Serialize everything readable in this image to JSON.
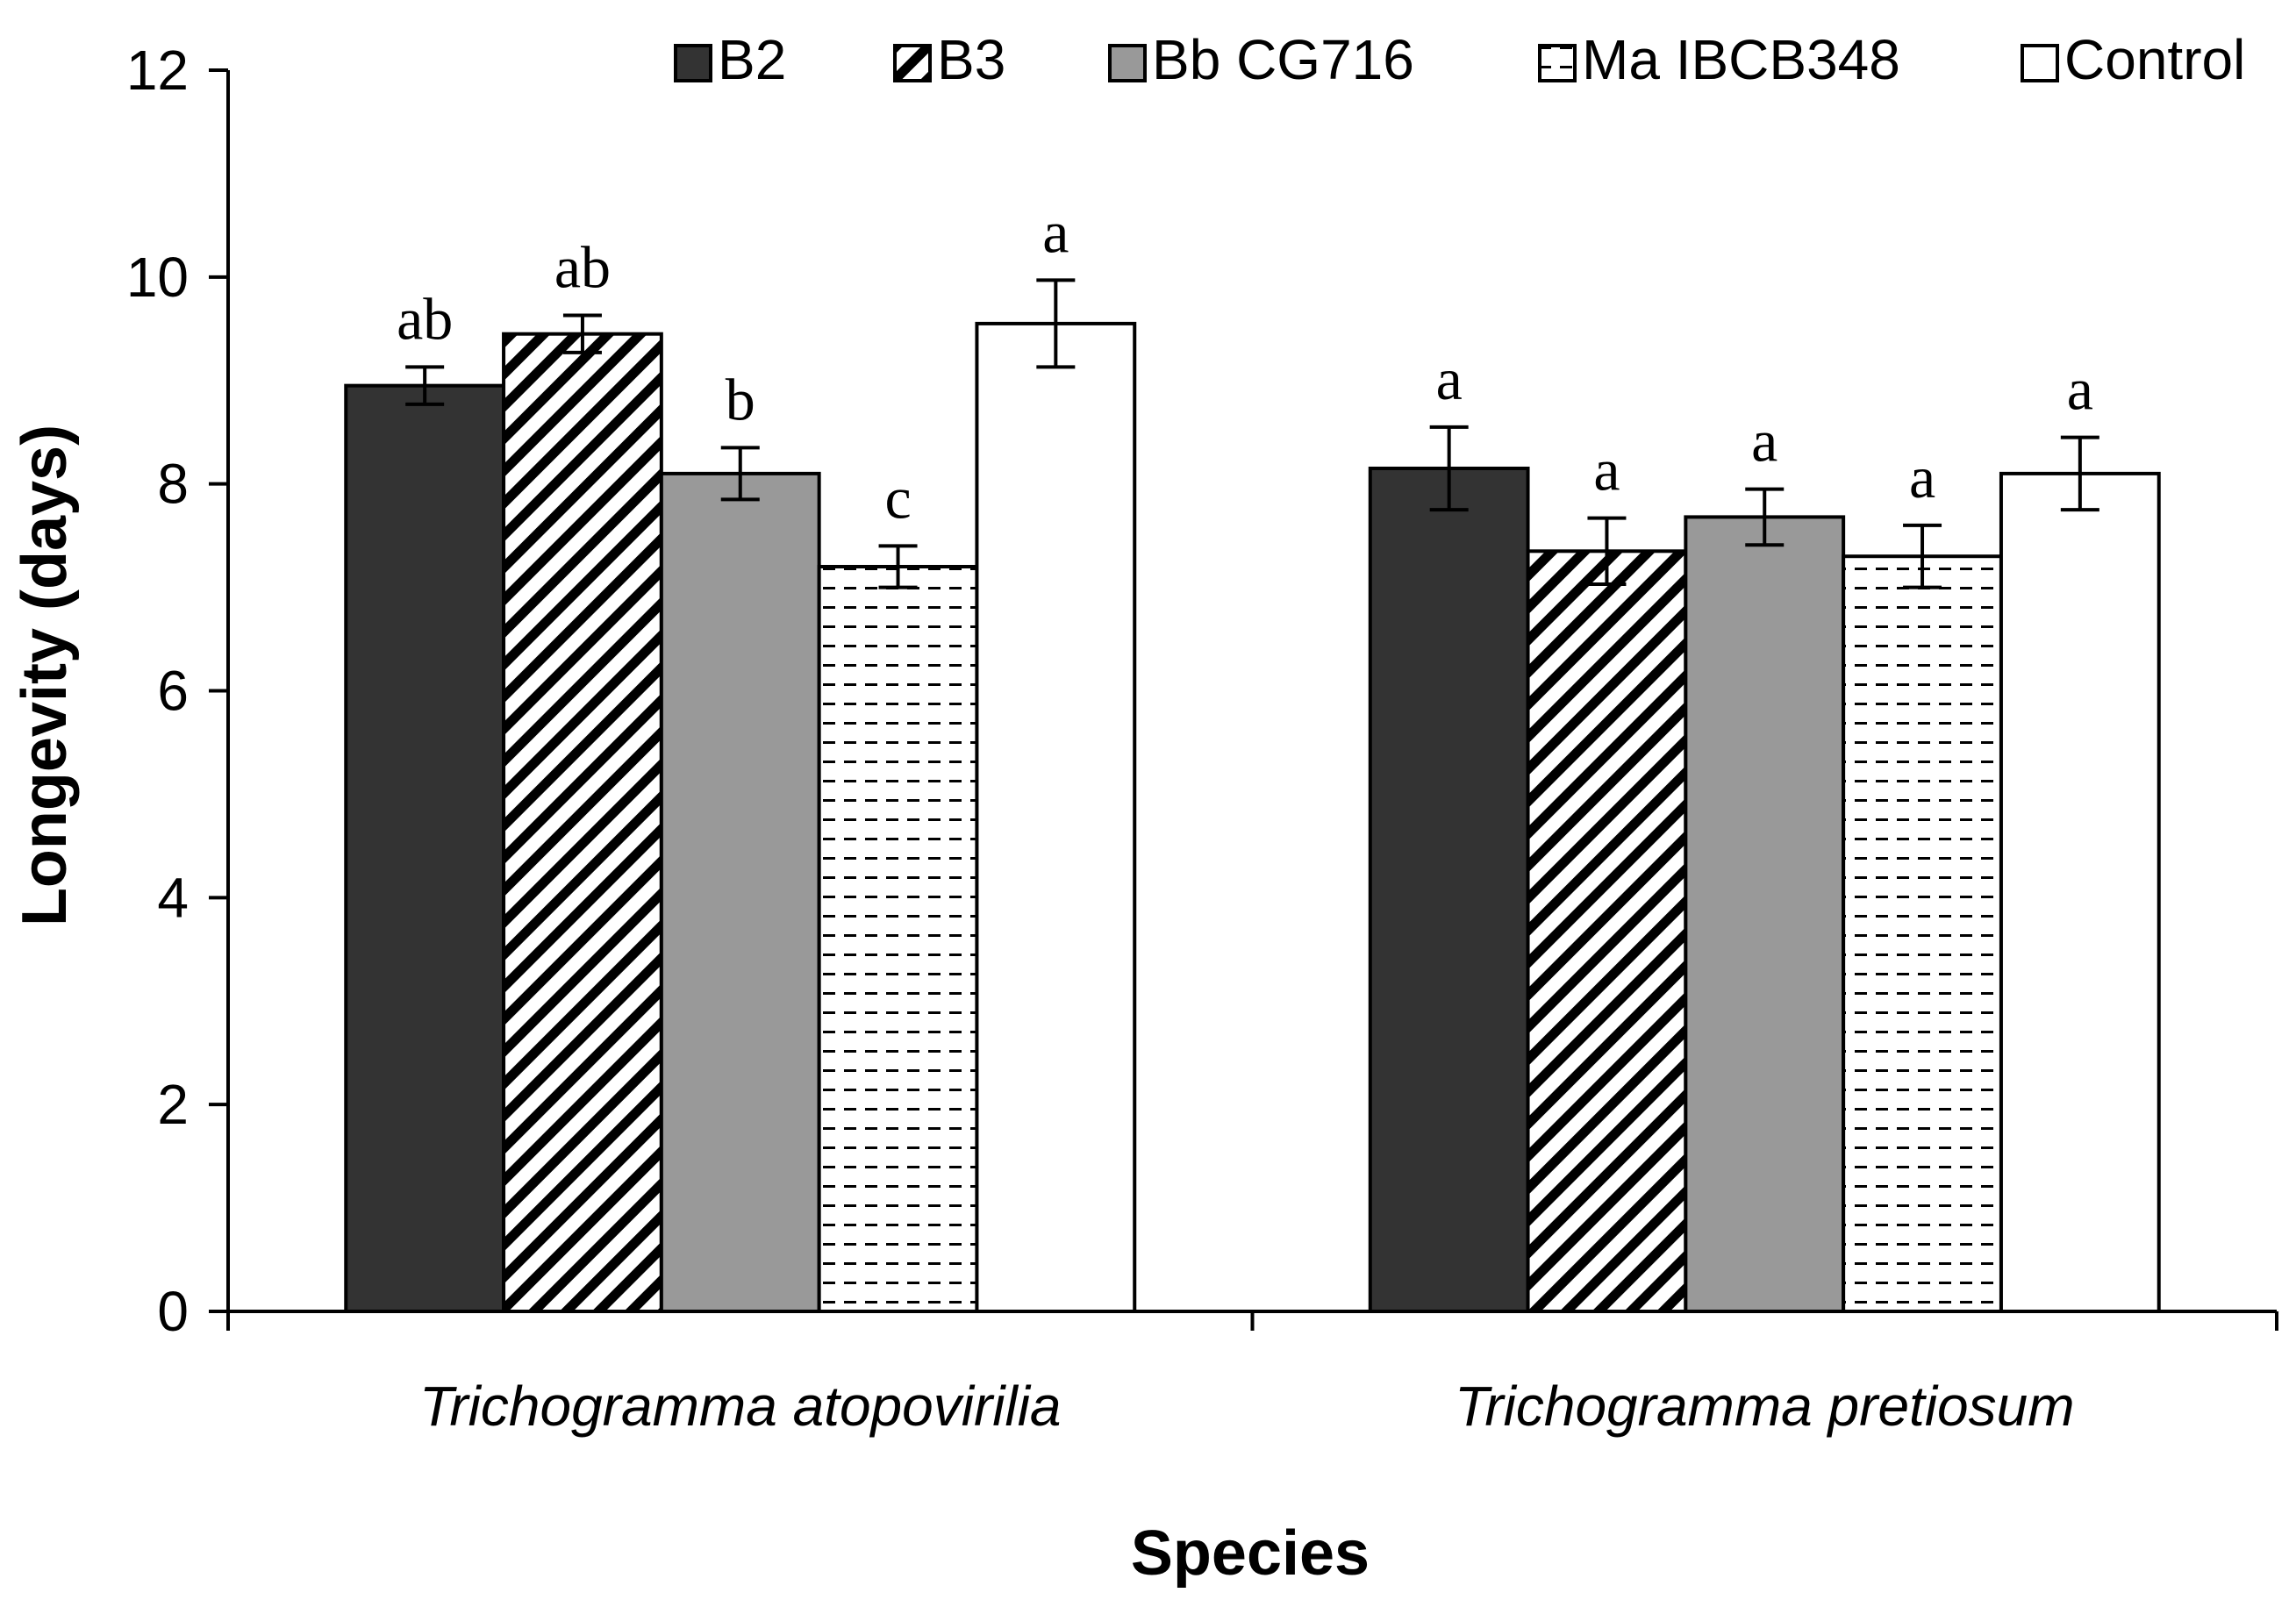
{
  "chart_data": {
    "type": "bar",
    "title": "",
    "xlabel": "Species",
    "ylabel": "Longevity (days)",
    "ylim": [
      0,
      12
    ],
    "yticks": [
      "0",
      "2",
      "4",
      "6",
      "8",
      "10",
      "12"
    ],
    "grid": false,
    "legend_position": "top-right",
    "categories": [
      "Trichogramma atopovirilia",
      "Trichogramma pretiosum"
    ],
    "series": [
      {
        "name": "B2",
        "pattern": "solid-dark",
        "color": "#333333",
        "values": [
          8.95,
          8.15
        ],
        "errors": [
          0.18,
          0.4
        ],
        "letters": [
          "ab",
          "a"
        ]
      },
      {
        "name": "B3",
        "pattern": "diagonal-hatch",
        "color": "#000000",
        "values": [
          9.45,
          7.35
        ],
        "errors": [
          0.18,
          0.32
        ],
        "letters": [
          "ab",
          "a"
        ]
      },
      {
        "name": "Bb CG716",
        "pattern": "solid-gray",
        "color": "#999999",
        "values": [
          8.1,
          7.68
        ],
        "errors": [
          0.25,
          0.27
        ],
        "letters": [
          "b",
          "a"
        ]
      },
      {
        "name": "Ma IBCB348",
        "pattern": "dash-fill",
        "color": "#000000",
        "values": [
          7.2,
          7.3
        ],
        "errors": [
          0.2,
          0.3
        ],
        "letters": [
          "c",
          "a"
        ]
      },
      {
        "name": "Control",
        "pattern": "white",
        "color": "#ffffff",
        "values": [
          9.55,
          8.1
        ],
        "errors": [
          0.42,
          0.35
        ],
        "letters": [
          "a",
          "a"
        ]
      }
    ]
  }
}
